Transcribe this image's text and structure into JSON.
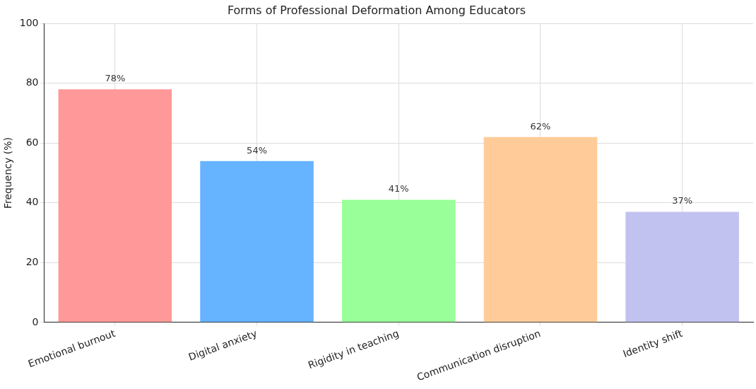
{
  "chart_data": {
    "type": "bar",
    "title": "Forms of Professional Deformation Among Educators",
    "ylabel": "Frequency (%)",
    "categories": [
      "Emotional burnout",
      "Digital anxiety",
      "Rigidity in teaching",
      "Communication disruption",
      "Identity shift"
    ],
    "values": [
      78,
      54,
      41,
      62,
      37
    ],
    "colors": [
      "#ff9999",
      "#66b3ff",
      "#99ff99",
      "#ffcc99",
      "#c2c2f0"
    ],
    "value_labels": [
      "78%",
      "54%",
      "41%",
      "62%",
      "37%"
    ],
    "ylim": [
      0,
      100
    ],
    "yticks": [
      0,
      20,
      40,
      60,
      80,
      100
    ],
    "grid": true
  }
}
